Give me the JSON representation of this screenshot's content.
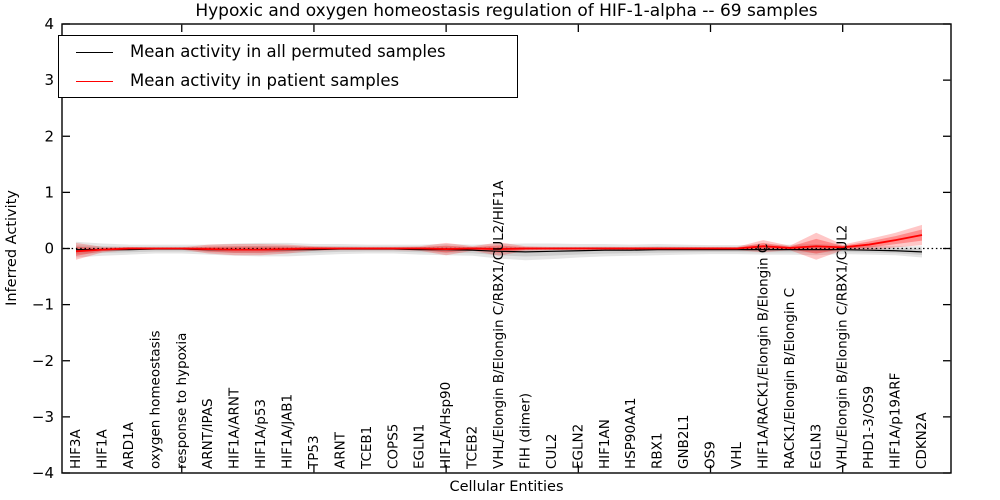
{
  "figure": {
    "title": "Hypoxic and oxygen homeostasis regulation of HIF-1-alpha -- 69 samples",
    "xlabel": "Cellular Entities",
    "ylabel": "Inferred Activity"
  },
  "chart_data": {
    "type": "line",
    "title": "Hypoxic and oxygen homeostasis regulation of HIF-1-alpha -- 69 samples",
    "xlabel": "Cellular Entities",
    "ylabel": "Inferred Activity",
    "ylim": [
      -4,
      4
    ],
    "yticks": [
      -4,
      -3,
      -2,
      -1,
      0,
      1,
      2,
      3,
      4
    ],
    "ytick_labels": [
      "−4",
      "−3",
      "−2",
      "−1",
      "0",
      "1",
      "2",
      "3",
      "4"
    ],
    "x_major_tick_indices": [
      4,
      9,
      14,
      19,
      24,
      29
    ],
    "grid": false,
    "legend_position": "upper left",
    "zero_line_style": "dotted",
    "categories": [
      "HIF3A",
      "HIF1A",
      "ARD1A",
      "oxygen homeostasis",
      "response to hypoxia",
      "ARNT/IPAS",
      "HIF1A/ARNT",
      "HIF1A/p53",
      "HIF1A/JAB1",
      "TP53",
      "ARNT",
      "TCEB1",
      "COPS5",
      "EGLN1",
      "HIF1A/Hsp90",
      "TCEB2",
      "VHL/Elongin B/Elongin C/RBX1/CUL2/HIF1A",
      "FIH (dimer)",
      "CUL2",
      "EGLN2",
      "HIF1AN",
      "HSP90AA1",
      "RBX1",
      "GNB2L1",
      "OS9",
      "VHL",
      "HIF1A/RACK1/Elongin B/Elongin C",
      "RACK1/Elongin B/Elongin C",
      "EGLN3",
      "VHL/Elongin B/Elongin C/RBX1/CUL2",
      "PHD1-3/OS9",
      "HIF1A/p19ARF",
      "CDKN2A"
    ],
    "series": [
      {
        "name": "Mean activity in all permuted samples",
        "color": "#000000",
        "band_outer_color": "rgba(0,0,0,0.10)",
        "band_inner_color": "rgba(0,0,0,0.10)",
        "line_width": 1.2,
        "values": [
          -0.02,
          -0.02,
          -0.02,
          -0.01,
          -0.01,
          -0.02,
          -0.02,
          -0.02,
          -0.02,
          -0.02,
          -0.01,
          -0.01,
          -0.01,
          -0.02,
          -0.02,
          -0.03,
          -0.05,
          -0.06,
          -0.05,
          -0.04,
          -0.03,
          -0.03,
          -0.02,
          -0.02,
          -0.02,
          -0.02,
          -0.02,
          -0.02,
          -0.02,
          -0.02,
          -0.03,
          -0.04,
          -0.06
        ],
        "band_halfwidth": [
          0.14,
          0.11,
          0.09,
          0.08,
          0.08,
          0.09,
          0.11,
          0.12,
          0.12,
          0.1,
          0.09,
          0.08,
          0.08,
          0.09,
          0.1,
          0.1,
          0.13,
          0.15,
          0.14,
          0.12,
          0.11,
          0.1,
          0.1,
          0.09,
          0.08,
          0.08,
          0.09,
          0.09,
          0.1,
          0.08,
          0.08,
          0.08,
          0.1
        ]
      },
      {
        "name": "Mean activity in patient samples",
        "color": "#ff0000",
        "band_outer_color": "rgba(255,0,0,0.22)",
        "band_inner_color": "rgba(255,0,0,0.30)",
        "line_width": 1.8,
        "values": [
          -0.05,
          -0.02,
          0,
          0,
          0,
          -0.01,
          -0.02,
          -0.02,
          -0.01,
          0,
          0,
          0,
          0,
          0,
          -0.01,
          0,
          -0.01,
          0,
          0,
          0,
          0,
          0,
          0,
          0,
          0,
          0,
          0.04,
          0.01,
          0.04,
          0.02,
          0.07,
          0.15,
          0.24
        ],
        "band_halfwidth": [
          0.15,
          0.05,
          0.03,
          0.02,
          0.02,
          0.08,
          0.1,
          0.1,
          0.08,
          0.04,
          0.03,
          0.03,
          0.03,
          0.04,
          0.11,
          0.04,
          0.12,
          0.04,
          0.03,
          0.03,
          0.03,
          0.03,
          0.03,
          0.03,
          0.03,
          0.03,
          0.11,
          0.04,
          0.24,
          0.05,
          0.1,
          0.13,
          0.18
        ]
      }
    ]
  }
}
